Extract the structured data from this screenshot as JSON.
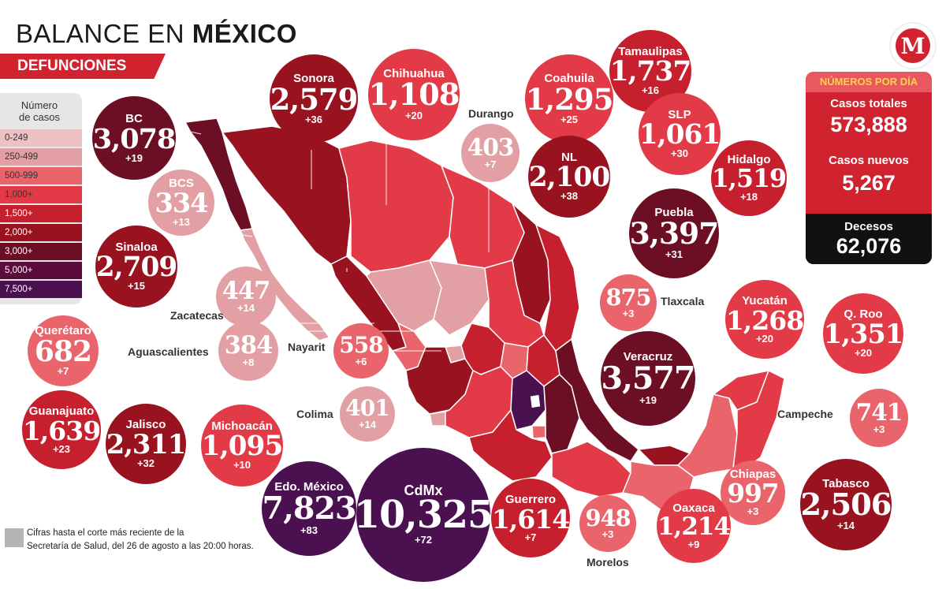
{
  "title_part1": "BALANCE EN ",
  "title_part2": "MÉXICO",
  "subtitle": "DEFUNCIONES",
  "legend": {
    "title_line1": "Número",
    "title_line2": "de casos",
    "items": [
      {
        "label": "0-249",
        "color": "#eec2c4"
      },
      {
        "label": "250-499",
        "color": "#e2a0a5"
      },
      {
        "label": "500-999",
        "color": "#e9646b"
      },
      {
        "label": "1,000+",
        "color": "#e23b47"
      },
      {
        "label": "1,500+",
        "color": "#c61f2e"
      },
      {
        "label": "2,000+",
        "color": "#98131f"
      },
      {
        "label": "3,000+",
        "color": "#6d0f24"
      },
      {
        "label": "5,000+",
        "color": "#5c0c3a"
      },
      {
        "label": "7,500+",
        "color": "#4a1050"
      }
    ]
  },
  "states": [
    {
      "name": "BC",
      "value": "3,078",
      "increase": "+19",
      "color": "#6d0f24"
    },
    {
      "name": "Sonora",
      "value": "2,579",
      "increase": "+36",
      "color": "#98131f"
    },
    {
      "name": "Chihuahua",
      "value": "1,108",
      "increase": "+20",
      "color": "#e23b47"
    },
    {
      "name": "Coahuila",
      "value": "1,295",
      "increase": "+25",
      "color": "#e23b47"
    },
    {
      "name": "Tamaulipas",
      "value": "1,737",
      "increase": "+16",
      "color": "#c61f2e"
    },
    {
      "name": "SLP",
      "value": "1,061",
      "increase": "+30",
      "color": "#e23b47"
    },
    {
      "name": "Hidalgo",
      "value": "1,519",
      "increase": "+18",
      "color": "#c61f2e"
    },
    {
      "name": "NL",
      "value": "2,100",
      "increase": "+38",
      "color": "#98131f"
    },
    {
      "name": "Puebla",
      "value": "3,397",
      "increase": "+31",
      "color": "#6d0f24"
    },
    {
      "name": "BCS",
      "value": "334",
      "increase": "+13",
      "color": "#e2a0a5"
    },
    {
      "name": "Sinaloa",
      "value": "2,709",
      "increase": "+15",
      "color": "#98131f"
    },
    {
      "name": "Yucatán",
      "value": "1,268",
      "increase": "+20",
      "color": "#e23b47"
    },
    {
      "name": "Q. Roo",
      "value": "1,351",
      "increase": "+20",
      "color": "#e23b47"
    },
    {
      "name": "Querétaro",
      "value": "682",
      "increase": "+7",
      "color": "#e9646b"
    },
    {
      "name": "Veracruz",
      "value": "3,577",
      "increase": "+19",
      "color": "#6d0f24"
    },
    {
      "name": "Guanajuato",
      "value": "1,639",
      "increase": "+23",
      "color": "#c61f2e"
    },
    {
      "name": "Jalisco",
      "value": "2,311",
      "increase": "+32",
      "color": "#98131f"
    },
    {
      "name": "Michoacán",
      "value": "1,095",
      "increase": "+10",
      "color": "#e23b47"
    },
    {
      "name": "Chiapas",
      "value": "997",
      "increase": "+3",
      "color": "#e9646b"
    },
    {
      "name": "Tabasco",
      "value": "2,506",
      "increase": "+14",
      "color": "#98131f"
    },
    {
      "name": "Edo. México",
      "value": "7,823",
      "increase": "+83",
      "color": "#4a1050"
    },
    {
      "name": "CdMx",
      "value": "10,325",
      "increase": "+72",
      "color": "#4a1050"
    },
    {
      "name": "Guerrero",
      "value": "1,614",
      "increase": "+7",
      "color": "#c61f2e"
    },
    {
      "name": "Oaxaca",
      "value": "1,214",
      "increase": "+9",
      "color": "#e23b47"
    },
    {
      "name": "Durango",
      "value": "403",
      "increase": "+7",
      "color": "#e2a0a5"
    },
    {
      "name": "Zacatecas",
      "value": "447",
      "increase": "+14",
      "color": "#e2a0a5"
    },
    {
      "name": "Aguascalientes",
      "value": "384",
      "increase": "+8",
      "color": "#e2a0a5"
    },
    {
      "name": "Nayarit",
      "value": "558",
      "increase": "+6",
      "color": "#e9646b"
    },
    {
      "name": "Colima",
      "value": "401",
      "increase": "+14",
      "color": "#e2a0a5"
    },
    {
      "name": "Tlaxcala",
      "value": "875",
      "increase": "+3",
      "color": "#e9646b"
    },
    {
      "name": "Campeche",
      "value": "741",
      "increase": "+3",
      "color": "#e9646b"
    },
    {
      "name": "Morelos",
      "value": "948",
      "increase": "+3",
      "color": "#e9646b"
    }
  ],
  "daily": {
    "title": "NÚMEROS POR DÍA",
    "total_label": "Casos totales",
    "total_value": "573,888",
    "new_label": "Casos nuevos",
    "new_value": "5,267",
    "deaths_label": "Decesos",
    "deaths_value": "62,076"
  },
  "footnote_line1": "Cifras hasta el corte más reciente de la",
  "footnote_line2": "Secretaría de Salud, del 26 de agosto a las 20:00 horas.",
  "logo_letter": "M"
}
